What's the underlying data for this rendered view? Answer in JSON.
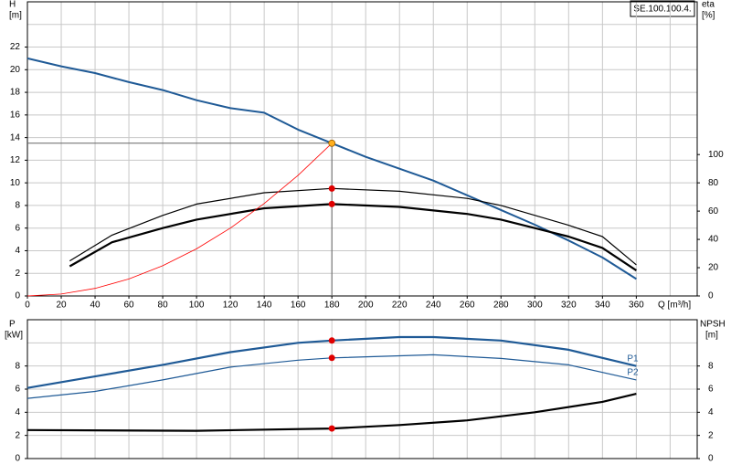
{
  "chart_data": [
    {
      "type": "line",
      "ylabel": "H",
      "yunit": "[m]",
      "y2label": "eta",
      "y2unit": "[%]",
      "xlabel": "Q [m³/h]",
      "box": "SE.100.100.4.",
      "xlim": [
        0,
        396
      ],
      "xticks": [
        0,
        20,
        40,
        60,
        80,
        100,
        120,
        140,
        160,
        180,
        200,
        220,
        240,
        260,
        280,
        300,
        320,
        340,
        360
      ],
      "xgrid": [
        0,
        20,
        40,
        60,
        80,
        100,
        120,
        140,
        160,
        180,
        200,
        220,
        240,
        260,
        280,
        300,
        320,
        340,
        360,
        380
      ],
      "ylim": [
        0,
        26
      ],
      "yticks": [
        0,
        2,
        4,
        6,
        8,
        10,
        12,
        14,
        16,
        18,
        20,
        22
      ],
      "ygrid": [
        0,
        2,
        4,
        6,
        8,
        10,
        12,
        14,
        16,
        18,
        20,
        22,
        24
      ],
      "y2lim": [
        0,
        208
      ],
      "y2ticks": [
        0,
        20,
        40,
        60,
        80,
        100
      ],
      "series": [
        {
          "color": "#1f5a96",
          "x": [
            0,
            20,
            40,
            60,
            80,
            100,
            120,
            140,
            160,
            180,
            200,
            240,
            260,
            280,
            300,
            320,
            340,
            360
          ],
          "values": [
            21,
            20.3,
            19.7,
            18.9,
            18.2,
            17.3,
            16.6,
            16.2,
            14.7,
            13.5,
            12.3,
            10.2,
            8.9,
            7.6,
            6.3,
            4.9,
            3.4,
            1.5
          ]
        },
        {
          "color": "#000000",
          "axis": "y2",
          "x": [
            25,
            50,
            80,
            100,
            140,
            180,
            220,
            260,
            280,
            320,
            340,
            360
          ],
          "values": [
            24.8,
            43,
            57,
            65,
            73,
            76,
            74,
            69,
            64,
            50,
            42,
            22
          ]
        },
        {
          "color": "#000000",
          "axis": "y2",
          "x": [
            25,
            50,
            80,
            100,
            140,
            180,
            220,
            260,
            280,
            320,
            340,
            360
          ],
          "values": [
            21,
            38,
            48,
            54,
            62,
            65,
            63,
            58,
            54,
            42,
            34,
            18
          ]
        },
        {
          "color": "#ff0000",
          "x": [
            0,
            20,
            40,
            60,
            80,
            100,
            120,
            140,
            160,
            180
          ],
          "values": [
            0,
            0.17,
            0.67,
            1.5,
            2.67,
            4.17,
            6,
            8.17,
            10.67,
            13.5
          ]
        }
      ],
      "markers": [
        {
          "x": 180,
          "y": 13.5,
          "color": "#ffb020"
        },
        {
          "x": 180,
          "y": 76,
          "axis": "y2",
          "color": "#e00000"
        },
        {
          "x": 180,
          "y": 65,
          "axis": "y2",
          "color": "#e00000"
        }
      ]
    },
    {
      "type": "line",
      "ylabel": "P",
      "yunit": "[kW]",
      "y2label": "NPSH",
      "y2unit": "[m]",
      "xlim": [
        0,
        396
      ],
      "xgrid": [
        0,
        20,
        40,
        60,
        80,
        100,
        120,
        140,
        160,
        180,
        200,
        220,
        240,
        260,
        280,
        300,
        320,
        340,
        360,
        380
      ],
      "ylim": [
        0,
        12
      ],
      "yticks": [
        0,
        2,
        4,
        6,
        8
      ],
      "ygrid": [
        0,
        2,
        4,
        6,
        8,
        10
      ],
      "y2lim": [
        0,
        12
      ],
      "y2ticks": [
        0,
        2,
        4,
        6,
        8
      ],
      "series": [
        {
          "name": "P1",
          "color": "#1f5a96",
          "x": [
            0,
            40,
            80,
            120,
            160,
            180,
            220,
            240,
            280,
            320,
            360
          ],
          "values": [
            6.1,
            7.1,
            8.1,
            9.2,
            10,
            10.2,
            10.5,
            10.5,
            10.2,
            9.4,
            8
          ]
        },
        {
          "name": "P2",
          "color": "#1f5a96",
          "x": [
            0,
            40,
            80,
            120,
            160,
            180,
            240,
            280,
            320,
            360
          ],
          "values": [
            5.2,
            5.8,
            6.8,
            7.9,
            8.5,
            8.7,
            8.97,
            8.65,
            8.1,
            6.8
          ]
        },
        {
          "color": "#000000",
          "axis": "y2",
          "x": [
            0,
            100,
            180,
            220,
            260,
            300,
            340,
            360
          ],
          "values": [
            2.46,
            2.4,
            2.6,
            2.9,
            3.3,
            4,
            4.9,
            5.6
          ]
        }
      ],
      "markers": [
        {
          "x": 180,
          "y": 10.2,
          "color": "#e00000"
        },
        {
          "x": 180,
          "y": 8.7,
          "color": "#e00000"
        },
        {
          "x": 180,
          "y": 2.6,
          "axis": "y2",
          "color": "#e00000"
        }
      ]
    }
  ]
}
